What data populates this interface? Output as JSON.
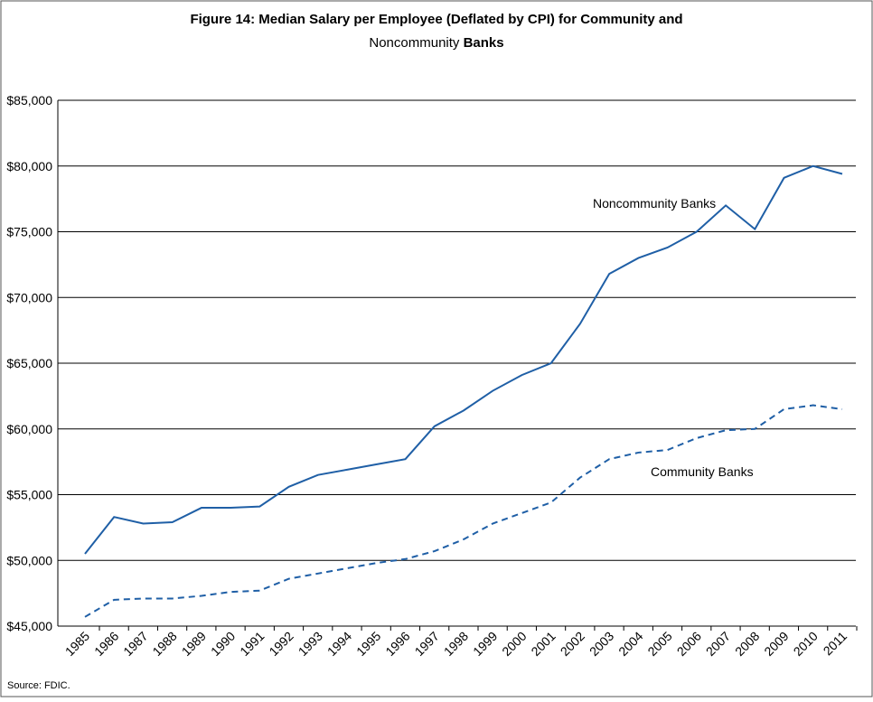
{
  "chart_data": {
    "type": "line",
    "title": [
      {
        "text": "Figure 14: Median Salary per Employee (Deflated by CPI) for Community and",
        "bold": true
      },
      {
        "text": "Noncommunity",
        "bold": false
      },
      {
        "text": "Banks",
        "bold": true
      }
    ],
    "categories": [
      "1985",
      "1986",
      "1987",
      "1988",
      "1989",
      "1990",
      "1991",
      "1992",
      "1993",
      "1994",
      "1995",
      "1996",
      "1997",
      "1998",
      "1999",
      "2000",
      "2001",
      "2002",
      "2003",
      "2004",
      "2005",
      "2006",
      "2007",
      "2008",
      "2009",
      "2010",
      "2011"
    ],
    "series": [
      {
        "name": "Noncommunity Banks",
        "color": "#1f5fa6",
        "dashed": false,
        "values": [
          50500,
          53300,
          52800,
          52900,
          54000,
          54000,
          54100,
          55600,
          56500,
          56900,
          57300,
          57700,
          60200,
          61400,
          62900,
          64100,
          65000,
          68000,
          71800,
          73000,
          73800,
          75000,
          77000,
          75200,
          79100,
          80000,
          79400
        ]
      },
      {
        "name": "Community Banks",
        "color": "#1f5fa6",
        "dashed": true,
        "values": [
          45700,
          47000,
          47100,
          47100,
          47300,
          47600,
          47700,
          48600,
          49000,
          49400,
          49800,
          50100,
          50700,
          51600,
          52800,
          53600,
          54400,
          56300,
          57700,
          58200,
          58400,
          59300,
          59900,
          60000,
          61500,
          61800,
          61500
        ]
      }
    ],
    "ylim": [
      45000,
      85000
    ],
    "yticks": [
      {
        "value": 45000,
        "label": "$45,000"
      },
      {
        "value": 50000,
        "label": "$50,000"
      },
      {
        "value": 55000,
        "label": "$55,000"
      },
      {
        "value": 60000,
        "label": "$60,000"
      },
      {
        "value": 65000,
        "label": "$65,000"
      },
      {
        "value": 70000,
        "label": "$70,000"
      },
      {
        "value": 75000,
        "label": "$75,000"
      },
      {
        "value": 80000,
        "label": "$80,000"
      },
      {
        "value": 85000,
        "label": "$85,000"
      }
    ],
    "grid": true,
    "source": "Source: FDIC."
  }
}
